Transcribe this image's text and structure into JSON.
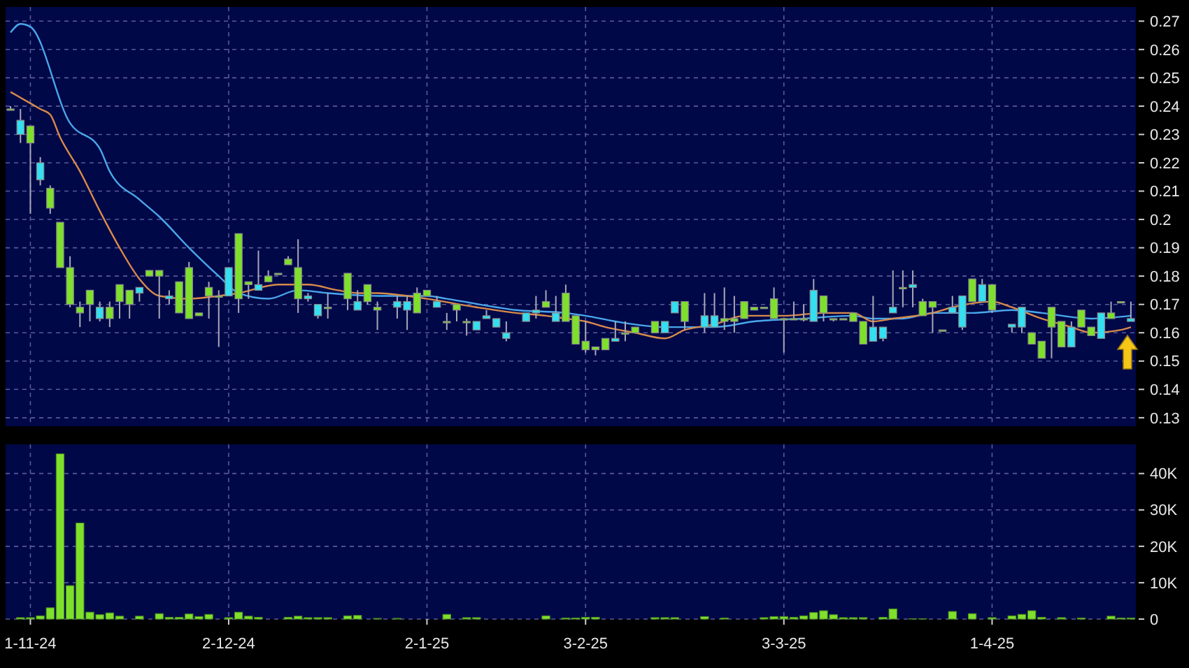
{
  "chart_data": [
    {
      "type": "candlestick",
      "categories": [
        null,
        null,
        null,
        null,
        null,
        null,
        null,
        null,
        null,
        null,
        null,
        null,
        null,
        null,
        null,
        null,
        null,
        null,
        null,
        null,
        null,
        null,
        null,
        null,
        null,
        null,
        null,
        null,
        null,
        null,
        null,
        null,
        null,
        null,
        null,
        null,
        null,
        null,
        null,
        null,
        null,
        null,
        null,
        null,
        null,
        null,
        null,
        null,
        null,
        null,
        null,
        null,
        null,
        null,
        null,
        null,
        null,
        null,
        null,
        null,
        null,
        null,
        null,
        null,
        null,
        null,
        null,
        null,
        null,
        null,
        null,
        null,
        null,
        null,
        null,
        null,
        null,
        null,
        null,
        null,
        null,
        null,
        null,
        null,
        null,
        null,
        null,
        null,
        null,
        null,
        null,
        null,
        null,
        null,
        null,
        null,
        null,
        null,
        null,
        null,
        null,
        null,
        null,
        null,
        null,
        null,
        null,
        null,
        null,
        null,
        null,
        null,
        null,
        null
      ],
      "ohlc": [
        [
          0.239,
          0.24,
          0.239,
          0.239
        ],
        [
          0.23,
          0.239,
          0.227,
          0.235
        ],
        [
          0.233,
          0.233,
          0.202,
          0.227
        ],
        [
          0.214,
          0.222,
          0.212,
          0.22
        ],
        [
          0.211,
          0.212,
          0.202,
          0.204
        ],
        [
          0.199,
          0.199,
          0.183,
          0.183
        ],
        [
          0.183,
          0.187,
          0.169,
          0.17
        ],
        [
          0.169,
          0.171,
          0.162,
          0.167
        ],
        [
          0.175,
          0.175,
          0.164,
          0.17
        ],
        [
          0.165,
          0.171,
          0.164,
          0.169
        ],
        [
          0.169,
          0.171,
          0.162,
          0.165
        ],
        [
          0.177,
          0.177,
          0.165,
          0.171
        ],
        [
          0.175,
          0.175,
          0.165,
          0.17
        ],
        [
          0.174,
          0.176,
          0.171,
          0.176
        ],
        [
          0.182,
          0.182,
          0.18,
          0.18
        ],
        [
          0.182,
          0.182,
          0.165,
          0.18
        ],
        [
          0.172,
          0.175,
          0.17,
          0.173
        ],
        [
          0.178,
          0.178,
          0.167,
          0.167
        ],
        [
          0.183,
          0.185,
          0.165,
          0.165
        ],
        [
          0.167,
          0.167,
          0.166,
          0.166
        ],
        [
          0.176,
          0.178,
          0.165,
          0.173
        ],
        [
          0.173,
          0.175,
          0.155,
          0.173
        ],
        [
          0.173,
          0.183,
          0.173,
          0.183
        ],
        [
          0.195,
          0.195,
          0.167,
          0.172
        ],
        [
          0.178,
          0.178,
          0.172,
          0.177
        ],
        [
          0.175,
          0.189,
          0.175,
          0.177
        ],
        [
          0.18,
          0.182,
          0.178,
          0.178
        ],
        [
          0.181,
          0.181,
          0.181,
          0.181
        ],
        [
          0.186,
          0.187,
          0.184,
          0.184
        ],
        [
          0.183,
          0.193,
          0.167,
          0.172
        ],
        [
          0.172,
          0.174,
          0.171,
          0.173
        ],
        [
          0.166,
          0.17,
          0.165,
          0.17
        ],
        [
          0.169,
          0.174,
          0.165,
          0.169
        ],
        null,
        [
          0.181,
          0.181,
          0.168,
          0.172
        ],
        [
          0.168,
          0.175,
          0.168,
          0.171
        ],
        [
          0.177,
          0.177,
          0.17,
          0.171
        ],
        [
          0.169,
          0.171,
          0.161,
          0.168
        ],
        null,
        [
          0.169,
          0.173,
          0.165,
          0.171
        ],
        [
          0.168,
          0.173,
          0.161,
          0.171
        ],
        [
          0.174,
          0.176,
          0.167,
          0.167
        ],
        [
          0.175,
          0.175,
          0.173,
          0.173
        ],
        [
          0.169,
          0.173,
          0.169,
          0.171
        ],
        [
          0.164,
          0.167,
          0.161,
          0.164
        ],
        [
          0.17,
          0.17,
          0.164,
          0.168
        ],
        [
          0.164,
          0.165,
          0.159,
          0.164
        ],
        [
          0.161,
          0.164,
          0.161,
          0.164
        ],
        [
          0.165,
          0.168,
          0.165,
          0.166
        ],
        [
          0.162,
          0.165,
          0.162,
          0.165
        ],
        [
          0.158,
          0.164,
          0.157,
          0.16
        ],
        null,
        [
          0.164,
          0.167,
          0.164,
          0.167
        ],
        [
          0.167,
          0.173,
          0.165,
          0.168
        ],
        [
          0.171,
          0.175,
          0.169,
          0.169
        ],
        [
          0.164,
          0.173,
          0.164,
          0.167
        ],
        [
          0.174,
          0.177,
          0.164,
          0.164
        ],
        [
          0.166,
          0.166,
          0.156,
          0.156
        ],
        [
          0.157,
          0.164,
          0.153,
          0.154
        ],
        [
          0.155,
          0.155,
          0.152,
          0.154
        ],
        [
          0.158,
          0.158,
          0.154,
          0.154
        ],
        [
          0.157,
          0.164,
          0.157,
          0.158
        ],
        [
          0.16,
          0.164,
          0.157,
          0.16
        ],
        [
          0.162,
          0.162,
          0.16,
          0.16
        ],
        null,
        [
          0.164,
          0.164,
          0.16,
          0.16
        ],
        [
          0.16,
          0.164,
          0.16,
          0.164
        ],
        [
          0.167,
          0.171,
          0.167,
          0.171
        ],
        [
          0.171,
          0.171,
          0.161,
          0.164
        ],
        null,
        [
          0.162,
          0.174,
          0.16,
          0.166
        ],
        [
          0.162,
          0.174,
          0.162,
          0.166
        ],
        [
          0.165,
          0.176,
          0.161,
          0.164
        ],
        [
          0.165,
          0.173,
          0.16,
          0.164
        ],
        [
          0.171,
          0.171,
          0.165,
          0.165
        ],
        [
          0.169,
          0.169,
          0.168,
          0.168
        ],
        [
          0.169,
          0.169,
          0.169,
          0.169
        ],
        [
          0.172,
          0.176,
          0.165,
          0.165
        ],
        [
          0.165,
          0.165,
          0.153,
          0.165
        ],
        [
          0.165,
          0.171,
          0.165,
          0.165
        ],
        [
          0.165,
          0.17,
          0.164,
          0.165
        ],
        [
          0.164,
          0.179,
          0.164,
          0.175
        ],
        [
          0.173,
          0.173,
          0.164,
          0.167
        ],
        [
          0.165,
          0.165,
          0.164,
          0.165
        ],
        [
          0.165,
          0.165,
          0.165,
          0.165
        ],
        [
          0.167,
          0.167,
          0.164,
          0.164
        ],
        [
          0.164,
          0.164,
          0.156,
          0.156
        ],
        [
          0.157,
          0.173,
          0.157,
          0.162
        ],
        [
          0.158,
          0.162,
          0.157,
          0.162
        ],
        [
          0.167,
          0.182,
          0.167,
          0.169
        ],
        [
          0.176,
          0.182,
          0.169,
          0.176
        ],
        [
          0.176,
          0.182,
          0.169,
          0.177
        ],
        [
          0.171,
          0.172,
          0.166,
          0.166
        ],
        [
          0.171,
          0.171,
          0.16,
          0.169
        ],
        [
          0.161,
          0.161,
          0.161,
          0.161
        ],
        [
          0.167,
          0.173,
          0.167,
          0.169
        ],
        [
          0.162,
          0.173,
          0.161,
          0.173
        ],
        [
          0.179,
          0.179,
          0.171,
          0.171
        ],
        [
          0.171,
          0.179,
          0.171,
          0.177
        ],
        [
          0.177,
          0.177,
          0.167,
          0.168
        ],
        null,
        [
          0.162,
          0.163,
          0.16,
          0.163
        ],
        [
          0.162,
          0.169,
          0.16,
          0.169
        ],
        [
          0.16,
          0.16,
          0.156,
          0.156
        ],
        [
          0.157,
          0.157,
          0.151,
          0.151
        ],
        [
          0.169,
          0.169,
          0.151,
          0.162
        ],
        [
          0.164,
          0.164,
          0.155,
          0.155
        ],
        [
          0.155,
          0.164,
          0.155,
          0.162
        ],
        [
          0.168,
          0.168,
          0.162,
          0.162
        ],
        [
          0.162,
          0.162,
          0.159,
          0.159
        ],
        [
          0.158,
          0.167,
          0.158,
          0.167
        ],
        [
          0.167,
          0.171,
          0.165,
          0.165
        ],
        [
          0.171,
          0.171,
          0.171,
          0.171
        ],
        [
          0.164,
          0.171,
          0.164,
          0.165
        ]
      ],
      "colors": [
        "#7fe02c",
        "#33dff0",
        "#7fe02c",
        "#33dff0",
        "#7fe02c",
        "#7fe02c",
        "#7fe02c",
        "#7fe02c",
        "#7fe02c",
        "#33dff0",
        "#7fe02c",
        "#7fe02c",
        "#7fe02c",
        "#33dff0",
        "#7fe02c",
        "#7fe02c",
        "#33dff0",
        "#7fe02c",
        "#7fe02c",
        "#7fe02c",
        "#7fe02c",
        "#7fe02c",
        "#33dff0",
        "#7fe02c",
        "#7fe02c",
        "#33dff0",
        "#7fe02c",
        "#7fe02c",
        "#7fe02c",
        "#7fe02c",
        "#33dff0",
        "#33dff0",
        "#7fe02c",
        null,
        "#7fe02c",
        "#33dff0",
        "#7fe02c",
        "#7fe02c",
        null,
        "#33dff0",
        "#33dff0",
        "#7fe02c",
        "#7fe02c",
        "#33dff0",
        "#7fe02c",
        "#7fe02c",
        "#7fe02c",
        "#33dff0",
        "#33dff0",
        "#33dff0",
        "#33dff0",
        null,
        "#33dff0",
        "#33dff0",
        "#7fe02c",
        "#33dff0",
        "#7fe02c",
        "#7fe02c",
        "#7fe02c",
        "#7fe02c",
        "#7fe02c",
        "#33dff0",
        "#7fe02c",
        "#7fe02c",
        null,
        "#7fe02c",
        "#33dff0",
        "#33dff0",
        "#7fe02c",
        null,
        "#33dff0",
        "#33dff0",
        "#7fe02c",
        "#7fe02c",
        "#7fe02c",
        "#7fe02c",
        "#7fe02c",
        "#7fe02c",
        "#7fe02c",
        "#7fe02c",
        "#7fe02c",
        "#33dff0",
        "#7fe02c",
        "#7fe02c",
        "#7fe02c",
        "#7fe02c",
        "#7fe02c",
        "#33dff0",
        "#33dff0",
        "#33dff0",
        "#7fe02c",
        "#33dff0",
        "#7fe02c",
        "#7fe02c",
        "#7fe02c",
        "#33dff0",
        "#33dff0",
        "#7fe02c",
        "#33dff0",
        "#7fe02c",
        null,
        "#33dff0",
        "#33dff0",
        "#7fe02c",
        "#7fe02c",
        "#7fe02c",
        "#7fe02c",
        "#33dff0",
        "#7fe02c",
        "#7fe02c",
        "#33dff0",
        "#7fe02c",
        "#7fe02c",
        "#33dff0"
      ],
      "series": [
        {
          "type": "line",
          "color": "#4aa6ea",
          "values": [
            0.266,
            0.269,
            0.268,
            null,
            null,
            null,
            0.234,
            null,
            null,
            0.225,
            0.217,
            null,
            null,
            0.207,
            null,
            0.201,
            null,
            null,
            0.19,
            null,
            null,
            0.18,
            null,
            0.174,
            null,
            null,
            0.172,
            null,
            null,
            0.175,
            null,
            null,
            0.174,
            null,
            null,
            null,
            null,
            0.173,
            null,
            null,
            null,
            null,
            0.173,
            null,
            0.172,
            null,
            null,
            null,
            null,
            0.169,
            null,
            0.168,
            null,
            null,
            null,
            null,
            0.167,
            null,
            0.166,
            null,
            null,
            0.164,
            null,
            null,
            null,
            null,
            0.162,
            null,
            null,
            null,
            null,
            0.162,
            null,
            null,
            null,
            0.164,
            null,
            null,
            null,
            null,
            0.165,
            null,
            null,
            null,
            null,
            0.166,
            null,
            0.165,
            null,
            null,
            0.165,
            null,
            null,
            0.167,
            null,
            null,
            null,
            0.167,
            null,
            null,
            null,
            0.168,
            null,
            null,
            0.167,
            null,
            null,
            null,
            null,
            0.165,
            null,
            null,
            null,
            0.166
          ]
        },
        {
          "type": "line",
          "color": "#d98a4a",
          "values": [
            0.245,
            0.243,
            null,
            0.239,
            0.237,
            0.229,
            null,
            0.217,
            null,
            0.203,
            null,
            0.19,
            null,
            0.179,
            null,
            0.173,
            null,
            null,
            0.172,
            null,
            null,
            0.173,
            null,
            0.174,
            null,
            null,
            null,
            0.177,
            null,
            0.177,
            0.177,
            null,
            null,
            0.175,
            null,
            0.174,
            null,
            0.174,
            null,
            null,
            0.173,
            null,
            0.172,
            null,
            null,
            null,
            null,
            0.169,
            null,
            null,
            null,
            0.167,
            null,
            null,
            0.166,
            null,
            0.165,
            null,
            0.164,
            null,
            0.162,
            null,
            null,
            0.16,
            null,
            null,
            0.158,
            null,
            0.161,
            null,
            null,
            0.163,
            null,
            null,
            0.166,
            null,
            null,
            null,
            0.166,
            null,
            null,
            null,
            0.167,
            null,
            null,
            0.167,
            null,
            0.164,
            null,
            0.165,
            null,
            null,
            null,
            0.167,
            null,
            0.169,
            null,
            null,
            null,
            0.171,
            null,
            0.169,
            null,
            null,
            0.165,
            null,
            null,
            0.162,
            null,
            0.16,
            null,
            null,
            0.161,
            0.162
          ]
        }
      ],
      "ylim": [
        0.127,
        0.275
      ],
      "yticks": [
        0.13,
        0.14,
        0.15,
        0.16,
        0.17,
        0.18,
        0.19,
        0.2,
        0.21,
        0.22,
        0.23,
        0.24,
        0.25,
        0.26,
        0.27
      ],
      "grid": true,
      "tick_labels": "y"
    },
    {
      "type": "bar",
      "categories": [
        null,
        null,
        "1-11-24",
        null,
        null,
        null,
        null,
        null,
        null,
        null,
        null,
        null,
        null,
        null,
        null,
        null,
        null,
        null,
        null,
        null,
        null,
        null,
        "2-12-24",
        null,
        null,
        null,
        null,
        null,
        null,
        null,
        null,
        null,
        null,
        null,
        null,
        null,
        null,
        null,
        null,
        null,
        null,
        null,
        "2-1-25",
        null,
        null,
        null,
        null,
        null,
        null,
        null,
        null,
        null,
        null,
        null,
        null,
        null,
        null,
        null,
        "3-2-25",
        null,
        null,
        null,
        null,
        null,
        null,
        null,
        null,
        null,
        null,
        null,
        null,
        null,
        null,
        null,
        null,
        null,
        null,
        null,
        "3-3-25",
        null,
        null,
        null,
        null,
        null,
        null,
        null,
        null,
        null,
        null,
        null,
        null,
        null,
        null,
        null,
        null,
        null,
        null,
        null,
        null,
        "1-4-25",
        null,
        null,
        null,
        null,
        null,
        null,
        null,
        null,
        null,
        null,
        null,
        null,
        null,
        null
      ],
      "values": [
        0,
        400,
        400,
        900,
        3100,
        45400,
        9200,
        26400,
        1900,
        1200,
        1700,
        800,
        0,
        800,
        0,
        1500,
        500,
        500,
        1400,
        700,
        1300,
        0,
        400,
        1900,
        800,
        500,
        0,
        0,
        500,
        800,
        400,
        400,
        400,
        0,
        900,
        1000,
        0,
        200,
        0,
        200,
        0,
        0,
        0,
        0,
        1300,
        0,
        400,
        400,
        0,
        0,
        0,
        0,
        0,
        0,
        900,
        0,
        300,
        300,
        500,
        500,
        0,
        0,
        0,
        0,
        0,
        400,
        400,
        400,
        0,
        0,
        700,
        0,
        300,
        0,
        0,
        0,
        400,
        700,
        700,
        500,
        900,
        1800,
        2300,
        1200,
        400,
        400,
        400,
        0,
        500,
        2800,
        0,
        100,
        100,
        0,
        0,
        2100,
        0,
        1500,
        0,
        400,
        0,
        900,
        1300,
        2300,
        500,
        0,
        400,
        0,
        300,
        0,
        0,
        800,
        300,
        300
      ],
      "color": "#7fe02c",
      "ylim": [
        0,
        48000
      ],
      "yticks": [
        0,
        {
          "value": 10000,
          "label": "10K"
        },
        {
          "value": 20000,
          "label": "20K"
        },
        {
          "value": 30000,
          "label": "30K"
        },
        {
          "value": 40000,
          "label": "40K"
        }
      ],
      "grid": true
    }
  ]
}
